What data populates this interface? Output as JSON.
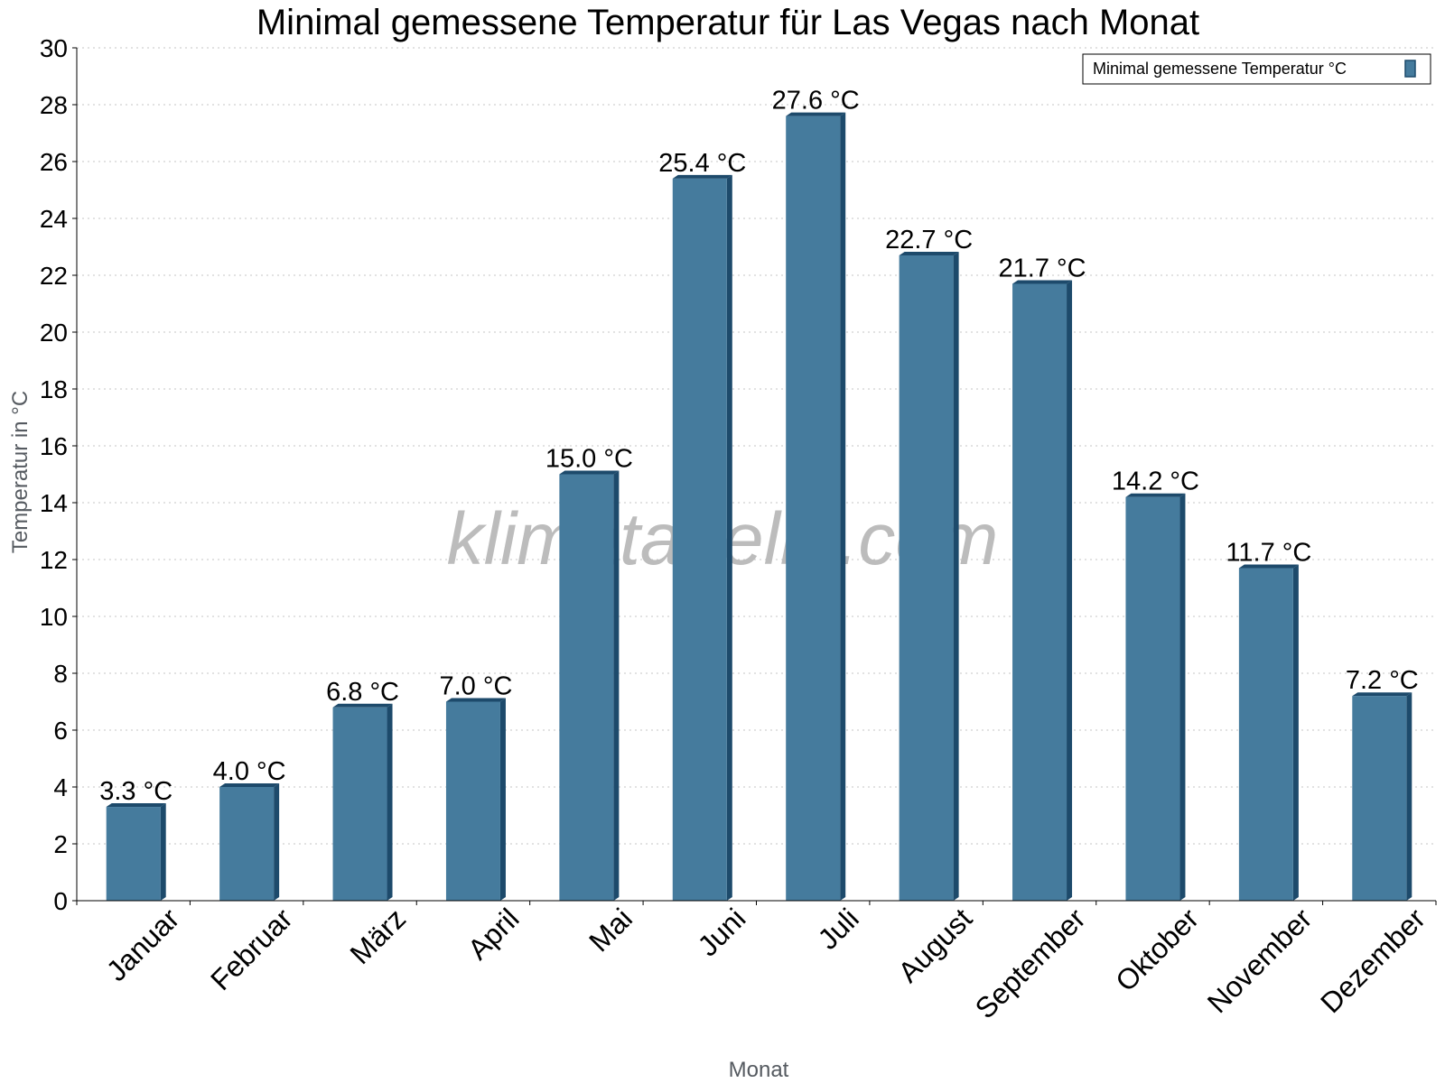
{
  "chart_data": {
    "type": "bar",
    "title": "Minimal gemessene Temperatur für Las Vegas nach Monat",
    "xlabel": "Monat",
    "ylabel": "Temperatur in °C",
    "ylim": [
      0,
      30
    ],
    "yticks": [
      0,
      2,
      4,
      6,
      8,
      10,
      12,
      14,
      16,
      18,
      20,
      22,
      24,
      26,
      28,
      30
    ],
    "grid": true,
    "legend_position": "top-right",
    "categories": [
      "Januar",
      "Februar",
      "März",
      "April",
      "Mai",
      "Juni",
      "Juli",
      "August",
      "September",
      "Oktober",
      "November",
      "Dezember"
    ],
    "series": [
      {
        "name": "Minimal gemessene Temperatur °C",
        "values": [
          3.3,
          4.0,
          6.8,
          7.0,
          15.0,
          25.4,
          27.6,
          22.7,
          21.7,
          14.2,
          11.7,
          7.2
        ],
        "labels": [
          "3.3 °C",
          "4.0 °C",
          "6.8 °C",
          "7.0 °C",
          "15.0 °C",
          "25.4 °C",
          "27.6 °C",
          "22.7 °C",
          "21.7 °C",
          "14.2 °C",
          "11.7 °C",
          "7.2 °C"
        ],
        "color": "#457b9d",
        "edge_color": "#1d4a6b"
      }
    ],
    "watermark": "klimatabelle.com"
  }
}
